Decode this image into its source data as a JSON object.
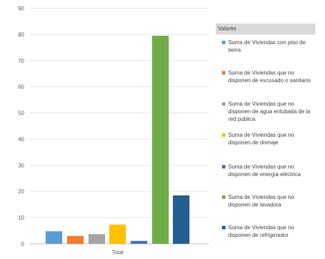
{
  "chart_data": {
    "type": "bar",
    "categories": [
      "Total"
    ],
    "ylim": [
      0,
      90
    ],
    "yticks": [
      0,
      10,
      20,
      30,
      40,
      50,
      60,
      70,
      80,
      90
    ],
    "grid": true,
    "legend_position": "right",
    "legend_title": "Valores",
    "series": [
      {
        "name": "Suma de Viviendas con piso de tierra",
        "value": 4.8,
        "color": "#5b9bd5"
      },
      {
        "name": "Suma de Viviendas que no disponen de excusado o sanitario",
        "value": 3.0,
        "color": "#ed7d31"
      },
      {
        "name": "Suma de Viviendas que no disponen de agua entubada de la red pública",
        "value": 3.7,
        "color": "#a5a5a5"
      },
      {
        "name": "Suma de Viviendas que no disponen de drenaje",
        "value": 7.3,
        "color": "#ffc000"
      },
      {
        "name": "Suma de Viviendas que no disponen de energía eléctrica",
        "value": 1.1,
        "color": "#4472c4"
      },
      {
        "name": "Suma de Viviendas que no disponen de lavadora",
        "value": 79.5,
        "color": "#70ad47"
      },
      {
        "name": "Suma de Viviendas que no disponen de refrigerador",
        "value": 18.5,
        "color": "#255e91"
      }
    ]
  },
  "legend_labels": [
    {
      "line1": "Suma de Viviendas con piso de",
      "line2": "tierra",
      "line3": ""
    },
    {
      "line1": "Suma de Viviendas que no",
      "line2": "disponen de excusado o sanitario",
      "line3": ""
    },
    {
      "line1": "Suma de Viviendas que no",
      "line2": "disponen de agua entubada de la",
      "line3": "red pública"
    },
    {
      "line1": "Suma de Viviendas que no",
      "line2": "disponen de drenaje",
      "line3": ""
    },
    {
      "line1": "Suma de Viviendas que no",
      "line2": "disponen de energía eléctrica",
      "line3": ""
    },
    {
      "line1": "Suma de Viviendas que no",
      "line2": "disponen de lavadora",
      "line3": ""
    },
    {
      "line1": "Suma de Viviendas que no",
      "line2": "disponen de refrigerador",
      "line3": ""
    }
  ]
}
